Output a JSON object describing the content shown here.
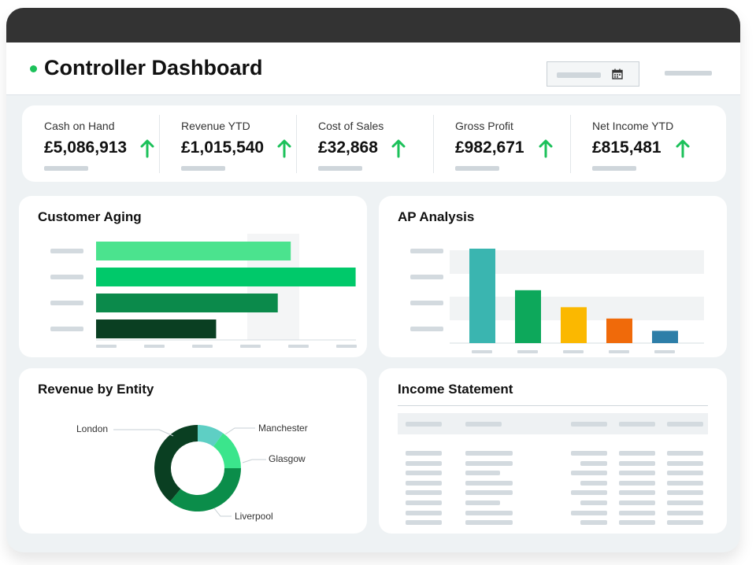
{
  "app": {
    "title": "Controller Dashboard",
    "accent_color": "#1cc15a"
  },
  "toolbar": {
    "date_picker_icon": "calendar-icon"
  },
  "kpis": [
    {
      "label": "Cash on Hand",
      "value": "£5,086,913",
      "trend": "up"
    },
    {
      "label": "Revenue YTD",
      "value": "£1,015,540",
      "trend": "up"
    },
    {
      "label": "Cost of Sales",
      "value": "£32,868",
      "trend": "up"
    },
    {
      "label": "Gross Profit",
      "value": "£982,671",
      "trend": "up"
    },
    {
      "label": "Net Income YTD",
      "value": "£815,481",
      "trend": "up"
    }
  ],
  "customer_aging": {
    "title": "Customer Aging",
    "chart_data": {
      "type": "bar",
      "orientation": "horizontal",
      "values": [
        0.6,
        0.8,
        0.56,
        0.37
      ],
      "colors": [
        "#4be38e",
        "#00c96a",
        "#0b8a4b",
        "#0a3f22"
      ]
    }
  },
  "ap_analysis": {
    "title": "AP Analysis",
    "chart_data": {
      "type": "bar",
      "orientation": "vertical",
      "values": [
        1.0,
        0.56,
        0.38,
        0.26,
        0.13
      ],
      "colors": [
        "#3ab5b0",
        "#0da85b",
        "#fbb800",
        "#f06a0a",
        "#2d7ea8"
      ]
    }
  },
  "revenue_by_entity": {
    "title": "Revenue by Entity",
    "chart_data": {
      "type": "pie",
      "variant": "donut",
      "labels": [
        "Manchester",
        "Glasgow",
        "Liverpool",
        "London"
      ],
      "values": [
        10,
        15,
        36,
        39
      ],
      "colors": [
        "#5ecfc4",
        "#3be58c",
        "#0b8d4a",
        "#0a3f22"
      ]
    }
  },
  "income_statement": {
    "title": "Income Statement"
  }
}
